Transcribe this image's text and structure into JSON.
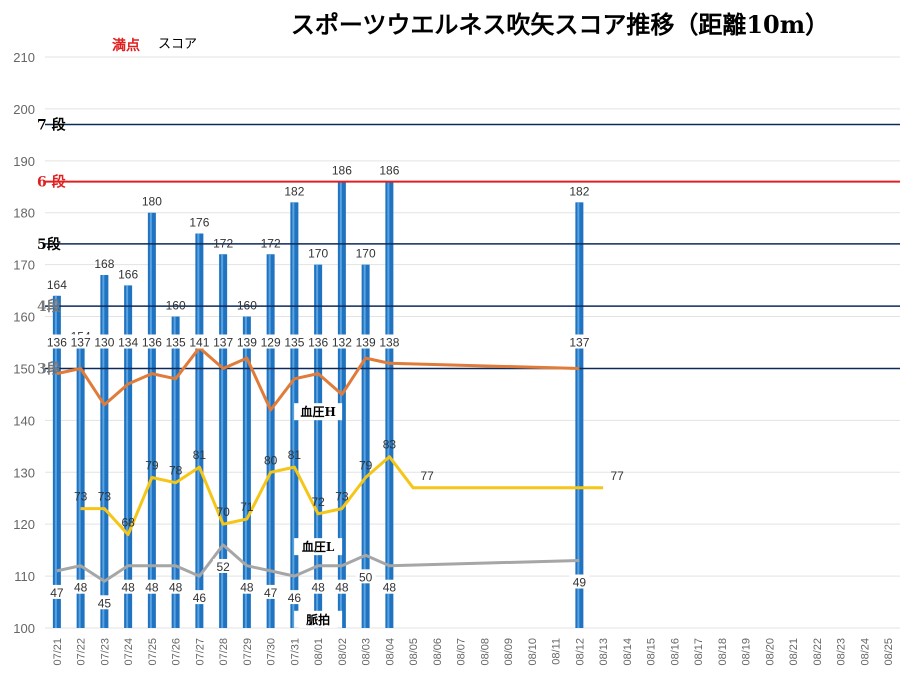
{
  "colors": {
    "bar": "#1f73c0",
    "bar_stripe": "#ffffff",
    "bp_high": "#e07b39",
    "bp_low": "#f5c518",
    "pulse": "#a6a6a6",
    "red_line": "#e02020",
    "navy_line": "#0d2a5c",
    "grid": "#e3e3e3"
  },
  "chart_data": {
    "type": "bar",
    "title": "スポーツウエルネス吹矢スコア推移（距離10m）",
    "legend": {
      "max_label": "満点",
      "score_label": "スコア"
    },
    "ylim": [
      100,
      210
    ],
    "yticks": [
      100,
      110,
      120,
      130,
      140,
      150,
      160,
      170,
      180,
      190,
      200,
      210
    ],
    "categories": [
      "07/21",
      "07/22",
      "07/23",
      "07/24",
      "07/25",
      "07/26",
      "07/27",
      "07/28",
      "07/29",
      "07/30",
      "07/31",
      "08/01",
      "08/02",
      "08/03",
      "08/04",
      "08/05",
      "08/06",
      "08/07",
      "08/08",
      "08/09",
      "08/10",
      "08/11",
      "08/12",
      "08/13",
      "08/14",
      "08/15",
      "08/16",
      "08/17",
      "08/18",
      "08/19",
      "08/20",
      "08/21",
      "08/22",
      "08/23",
      "08/24",
      "08/25"
    ],
    "series": [
      {
        "name": "スコア",
        "values": [
          164,
          154,
          168,
          166,
          180,
          160,
          176,
          172,
          160,
          172,
          182,
          170,
          186,
          170,
          186,
          null,
          null,
          null,
          null,
          null,
          null,
          null,
          182,
          null,
          null,
          null,
          null,
          null,
          null,
          null,
          null,
          null,
          null,
          null,
          null,
          null
        ]
      },
      {
        "name": "血圧H",
        "values": [
          136,
          137,
          130,
          134,
          136,
          135,
          141,
          137,
          139,
          129,
          135,
          136,
          132,
          139,
          138,
          null,
          null,
          null,
          null,
          null,
          null,
          null,
          137,
          null,
          null,
          null,
          null,
          null,
          null,
          null,
          null,
          null,
          null,
          null,
          null,
          null
        ]
      },
      {
        "name": "血圧L",
        "values": [
          null,
          73,
          73,
          68,
          79,
          78,
          81,
          70,
          71,
          80,
          81,
          72,
          73,
          79,
          83,
          77,
          null,
          null,
          null,
          null,
          null,
          null,
          null,
          77,
          null,
          null,
          null,
          null,
          null,
          null,
          null,
          null,
          null,
          null,
          null,
          null
        ]
      },
      {
        "name": "脈拍",
        "values": [
          47,
          48,
          45,
          48,
          48,
          48,
          46,
          52,
          48,
          47,
          46,
          48,
          48,
          50,
          48,
          null,
          null,
          null,
          null,
          null,
          null,
          null,
          49,
          null,
          null,
          null,
          null,
          null,
          null,
          null,
          null,
          null,
          null,
          null,
          null,
          null
        ]
      }
    ],
    "series_label_values": {
      "bp_low": [
        null,
        73,
        73,
        68,
        79,
        78,
        81,
        70,
        71,
        80,
        81,
        72,
        73,
        79,
        83,
        77,
        null,
        null,
        null,
        null,
        null,
        null,
        null,
        77
      ]
    },
    "level_lines": [
      {
        "label": "7 段",
        "value": 197
      },
      {
        "label": "6 段",
        "value": 186
      },
      {
        "label": "5段",
        "value": 174
      },
      {
        "label": "4段",
        "value": 162
      },
      {
        "label": "3段",
        "value": 150
      }
    ]
  }
}
